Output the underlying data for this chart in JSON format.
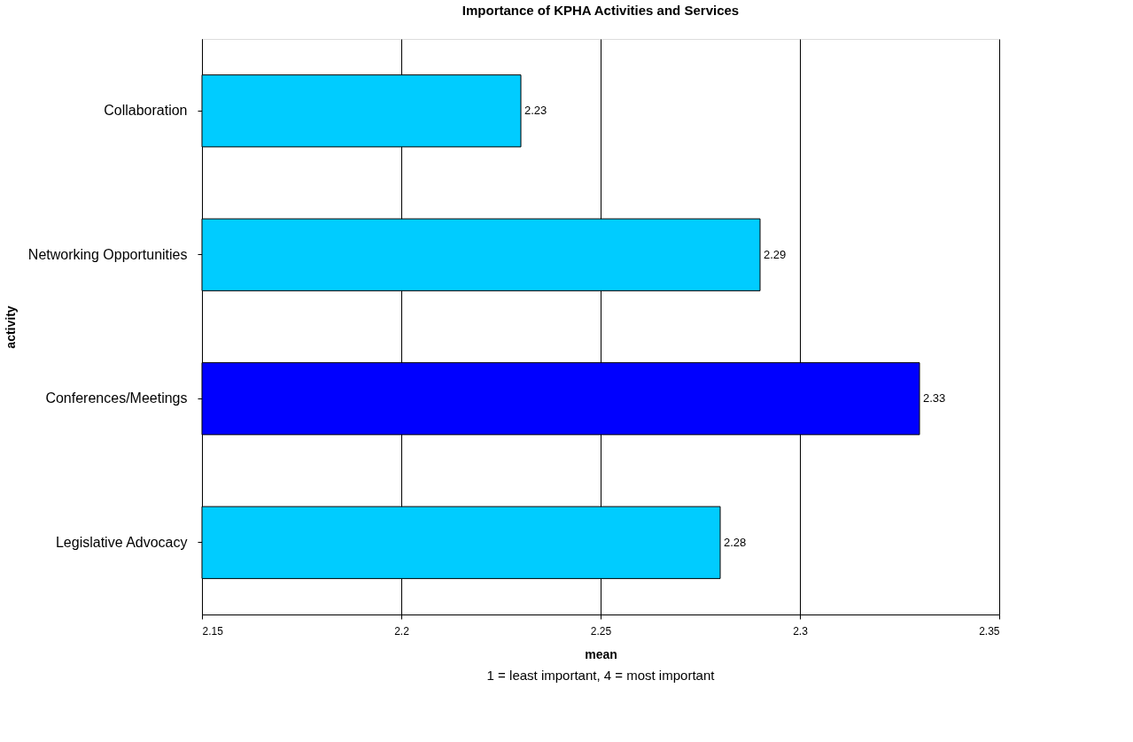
{
  "chart_data": {
    "type": "bar",
    "orientation": "horizontal",
    "title": "Importance of KPHA Activities and Services",
    "categories": [
      "Collaboration",
      "Networking Opportunities",
      "Conferences/Meetings",
      "Legislative Advocacy"
    ],
    "values": [
      2.23,
      2.29,
      2.33,
      2.28
    ],
    "colors": [
      "#00ccff",
      "#00ccff",
      "#0000ff",
      "#00ccff"
    ],
    "xlim": [
      2.15,
      2.35
    ],
    "xticks": [
      2.15,
      2.2,
      2.25,
      2.3,
      2.35
    ],
    "xlabel": "mean",
    "ylabel": "activity",
    "annotations": [
      "1 = least important, 4 = most important"
    ],
    "data_labels": true,
    "grid": "x"
  }
}
